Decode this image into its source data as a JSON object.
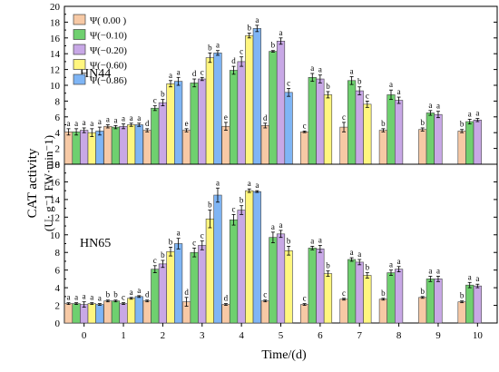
{
  "chart_data": {
    "type": "bar",
    "x_categories": [
      "0",
      "1",
      "2",
      "3",
      "4",
      "5",
      "6",
      "7",
      "8",
      "9",
      "10"
    ],
    "xlabel": "Time/(d)",
    "ylabel_main": "CAT activity",
    "ylabel_unit": "(U· g⁻1 FW·min⁻1)",
    "legend_position": "top-left",
    "series": [
      {
        "name": "Ψ( 0.00 )",
        "color": "#f7c9a5"
      },
      {
        "name": "Ψ(−0.10)",
        "color": "#6fd06f"
      },
      {
        "name": "Ψ(−0.20)",
        "color": "#c8a8e6"
      },
      {
        "name": "Ψ(−0.60)",
        "color": "#fff67f"
      },
      {
        "name": "Ψ(−0.86)",
        "color": "#7fb5f5"
      }
    ],
    "panels": [
      {
        "label": "HN44",
        "ylim": [
          0,
          20
        ],
        "yticks": [
          "0",
          "2",
          "4",
          "6",
          "8",
          "10",
          "12",
          "14",
          "16",
          "18",
          "20"
        ],
        "groups": [
          {
            "values": [
              4.1,
              4.1,
              4.3,
              4.0,
              4.2
            ],
            "errors": [
              0.4,
              0.4,
              0.3,
              0.5,
              0.5
            ],
            "letters": [
              "a",
              "a",
              "a",
              "a",
              "a"
            ]
          },
          {
            "values": [
              4.8,
              4.7,
              4.8,
              5.0,
              5.0
            ],
            "errors": [
              0.2,
              0.2,
              0.3,
              0.2,
              0.2
            ],
            "letters": [
              "a",
              "a",
              "a",
              "a",
              "a"
            ]
          },
          {
            "values": [
              4.3,
              7.1,
              7.8,
              10.2,
              10.5
            ],
            "errors": [
              0.2,
              0.3,
              0.4,
              0.4,
              0.5
            ],
            "letters": [
              "d",
              "c",
              "b",
              "a",
              "a"
            ]
          },
          {
            "values": [
              4.3,
              10.3,
              10.8,
              13.5,
              14.1
            ],
            "errors": [
              0.2,
              0.5,
              0.2,
              0.6,
              0.3
            ],
            "letters": [
              "e",
              "d",
              "c",
              "b",
              "a"
            ]
          },
          {
            "values": [
              4.8,
              11.9,
              13.0,
              16.3,
              17.2
            ],
            "errors": [
              0.5,
              0.5,
              0.6,
              0.3,
              0.4
            ],
            "letters": [
              "e",
              "d",
              "c",
              "b",
              "a"
            ]
          },
          {
            "values": [
              4.9,
              14.3,
              15.6,
              null,
              9.1
            ],
            "errors": [
              0.3,
              0.1,
              0.4,
              0,
              0.5
            ],
            "letters": [
              "d",
              "b",
              "a",
              "",
              "c"
            ],
            "order": [
              0,
              1,
              2,
              4
            ]
          },
          {
            "values": [
              4.1,
              11.0,
              10.8,
              8.8
            ],
            "errors": [
              0.1,
              0.5,
              0.5,
              0.4
            ],
            "letters": [
              "c",
              "a",
              "a",
              "b"
            ],
            "order": [
              0,
              1,
              2,
              3
            ]
          },
          {
            "values": [
              4.7,
              10.6,
              9.3,
              7.6
            ],
            "errors": [
              0.6,
              0.5,
              0.5,
              0.4
            ],
            "letters": [
              "c",
              "a",
              "b",
              "c"
            ],
            "order": [
              0,
              1,
              2,
              3
            ]
          },
          {
            "values": [
              4.3,
              8.8,
              8.1
            ],
            "errors": [
              0.2,
              0.6,
              0.4
            ],
            "letters": [
              "b",
              "a",
              "a"
            ],
            "order": [
              0,
              1,
              2
            ]
          },
          {
            "values": [
              4.4,
              6.5,
              6.3
            ],
            "errors": [
              0.2,
              0.3,
              0.4
            ],
            "letters": [
              "b",
              "a",
              "a"
            ],
            "order": [
              0,
              1,
              2
            ]
          },
          {
            "values": [
              4.2,
              5.4,
              5.6
            ],
            "errors": [
              0.2,
              0.3,
              0.2
            ],
            "letters": [
              "b",
              "a",
              "a"
            ],
            "order": [
              0,
              1,
              2
            ]
          }
        ]
      },
      {
        "label": "HN65",
        "ylim": [
          0,
          18
        ],
        "yticks": [
          "0",
          "2",
          "4",
          "6",
          "8",
          "10",
          "12",
          "14",
          "16",
          "18"
        ],
        "groups": [
          {
            "values": [
              2.2,
              2.2,
              2.1,
              2.2,
              2.1
            ],
            "errors": [
              0.1,
              0.1,
              0.3,
              0.1,
              0.1
            ],
            "letters": [
              "a",
              "a",
              "a",
              "a",
              "a"
            ]
          },
          {
            "values": [
              2.5,
              2.5,
              2.2,
              2.8,
              3.0
            ],
            "errors": [
              0.1,
              0.1,
              0.1,
              0.1,
              0.1
            ],
            "letters": [
              "b",
              "b",
              "c",
              "a",
              "a"
            ]
          },
          {
            "values": [
              2.5,
              6.1,
              6.7,
              8.1,
              9.0
            ],
            "errors": [
              0.1,
              0.4,
              0.4,
              0.5,
              0.6
            ],
            "letters": [
              "d",
              "c",
              "b",
              "b",
              "a"
            ]
          },
          {
            "values": [
              2.4,
              8.0,
              8.8,
              11.8,
              14.5
            ],
            "errors": [
              0.5,
              0.5,
              0.5,
              1.0,
              0.8
            ],
            "letters": [
              "d",
              "c",
              "c",
              "b",
              "a"
            ]
          },
          {
            "values": [
              2.1,
              11.7,
              12.8,
              15.0,
              14.9
            ],
            "errors": [
              0.1,
              0.6,
              0.5,
              0.2,
              0.1
            ],
            "letters": [
              "d",
              "c",
              "b",
              "a",
              "a"
            ]
          },
          {
            "values": [
              2.5,
              9.7,
              10.1,
              8.2
            ],
            "errors": [
              0.1,
              0.6,
              0.4,
              0.5
            ],
            "letters": [
              "c",
              "a",
              "a",
              "b"
            ],
            "order": [
              0,
              1,
              2,
              3
            ]
          },
          {
            "values": [
              2.1,
              8.5,
              8.4,
              5.6
            ],
            "errors": [
              0.1,
              0.2,
              0.4,
              0.3
            ],
            "letters": [
              "c",
              "a",
              "a",
              "b"
            ],
            "order": [
              0,
              1,
              2,
              3
            ]
          },
          {
            "values": [
              2.7,
              7.2,
              6.9,
              5.4
            ],
            "errors": [
              0.1,
              0.2,
              0.3,
              0.3
            ],
            "letters": [
              "c",
              "a",
              "a",
              "b"
            ],
            "order": [
              0,
              1,
              2,
              3
            ]
          },
          {
            "values": [
              2.7,
              5.7,
              6.1
            ],
            "errors": [
              0.1,
              0.3,
              0.3
            ],
            "letters": [
              "b",
              "a",
              "a"
            ],
            "order": [
              0,
              1,
              2
            ]
          },
          {
            "values": [
              2.9,
              5.0,
              5.0
            ],
            "errors": [
              0.1,
              0.3,
              0.3
            ],
            "letters": [
              "b",
              "a",
              "a"
            ],
            "order": [
              0,
              1,
              2
            ]
          },
          {
            "values": [
              2.4,
              4.3,
              4.2
            ],
            "errors": [
              0.1,
              0.3,
              0.2
            ],
            "letters": [
              "b",
              "a",
              "a"
            ],
            "order": [
              0,
              1,
              2
            ]
          }
        ]
      }
    ]
  }
}
